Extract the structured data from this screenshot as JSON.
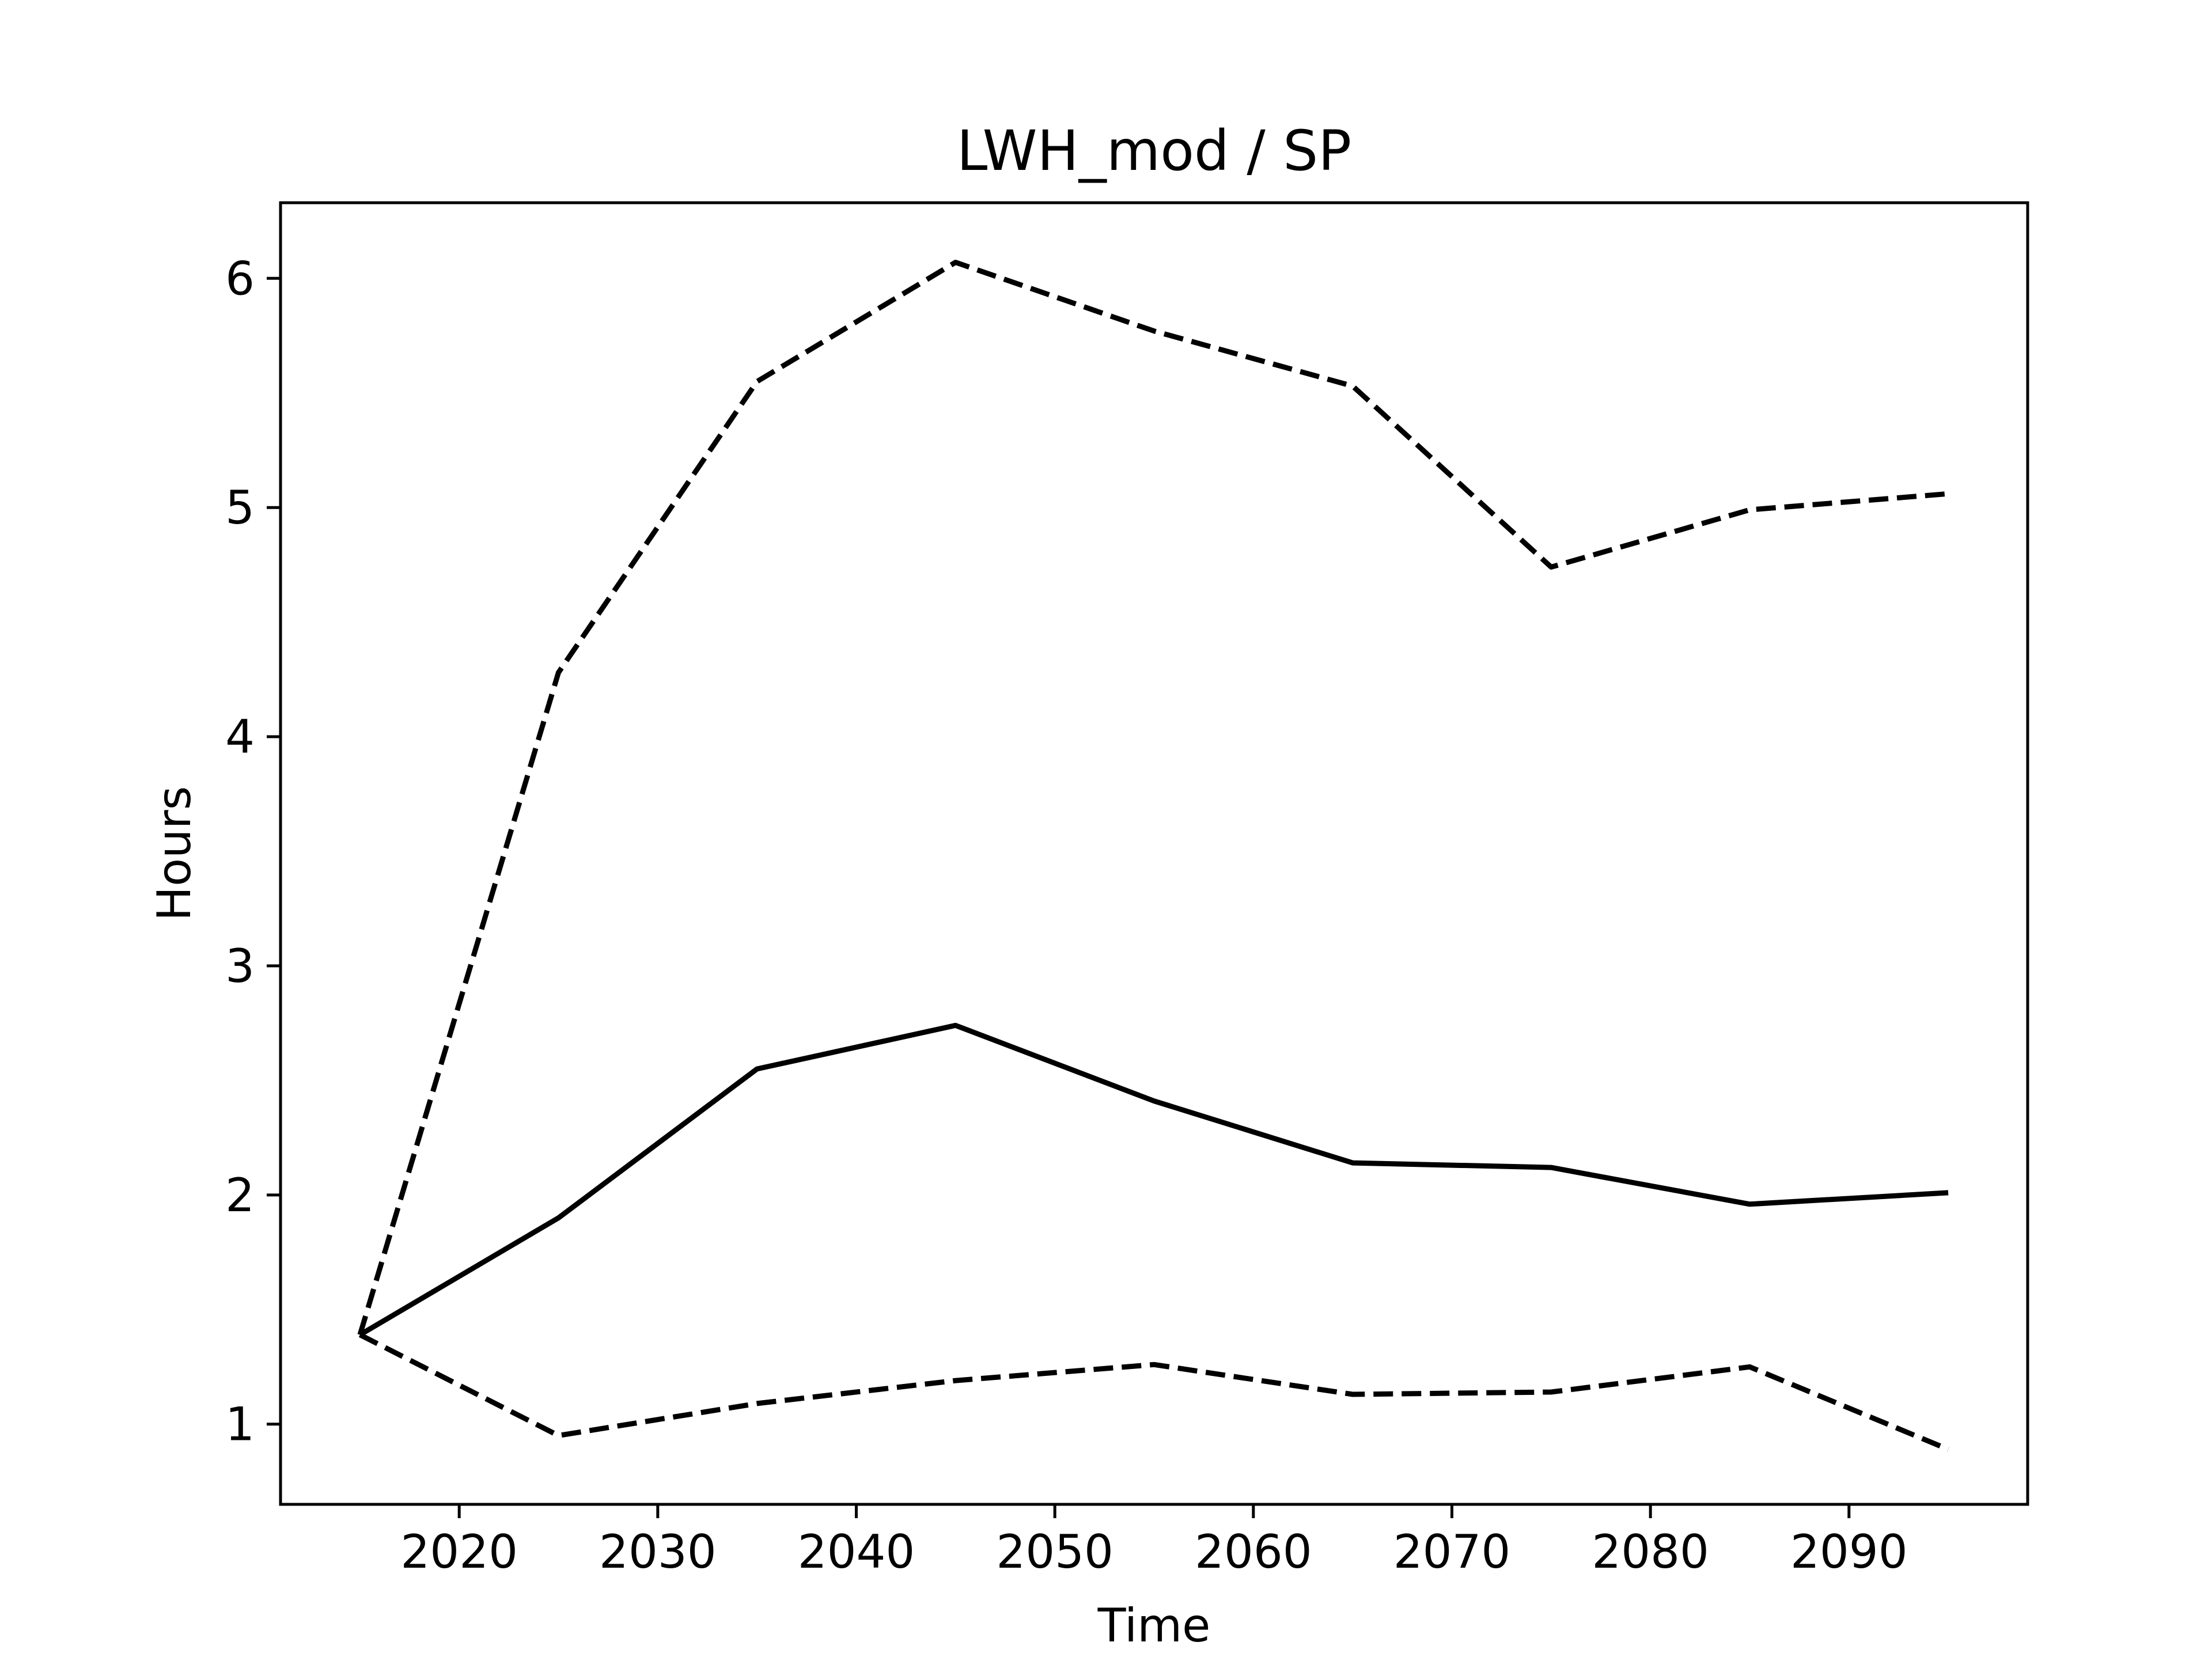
{
  "chart_data": {
    "type": "line",
    "title": "LWH_mod / SP",
    "xlabel": "Time",
    "ylabel": "Hours",
    "xlim": [
      2011,
      2099
    ],
    "ylim": [
      0.65,
      6.33
    ],
    "grid": false,
    "legend": "none",
    "x": [
      2015,
      2025,
      2035,
      2045,
      2055,
      2065,
      2075,
      2085,
      2095
    ],
    "xticks": [
      2020,
      2030,
      2040,
      2050,
      2060,
      2070,
      2080,
      2090
    ],
    "xtick_labels": [
      "2020",
      "2030",
      "2040",
      "2050",
      "2060",
      "2070",
      "2080",
      "2090"
    ],
    "yticks": [
      1,
      2,
      3,
      4,
      5,
      6
    ],
    "ytick_labels": [
      "1",
      "2",
      "3",
      "4",
      "5",
      "6"
    ],
    "series": [
      {
        "style": "solid",
        "color": "#000000",
        "values": [
          1.39,
          1.9,
          2.55,
          2.74,
          2.41,
          2.14,
          2.12,
          1.96,
          2.01
        ]
      },
      {
        "style": "dashed",
        "color": "#000000",
        "values": [
          1.39,
          4.28,
          5.55,
          6.07,
          5.77,
          5.53,
          4.74,
          4.99,
          5.06
        ]
      },
      {
        "style": "dashed",
        "color": "#000000",
        "values": [
          1.39,
          0.95,
          1.09,
          1.19,
          1.26,
          1.13,
          1.14,
          1.25,
          0.89
        ]
      }
    ]
  }
}
